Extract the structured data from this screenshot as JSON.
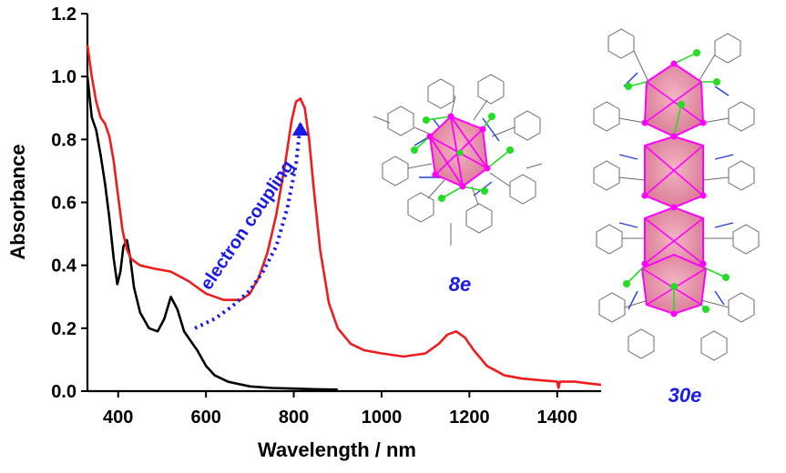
{
  "chart_data": {
    "type": "line",
    "xlabel": "Wavelength / nm",
    "ylabel": "Absorbance",
    "xlim": [
      330,
      1500
    ],
    "ylim": [
      0,
      1.2
    ],
    "x_ticks": [
      400,
      600,
      800,
      1000,
      1200,
      1400
    ],
    "y_ticks": [
      0.0,
      0.2,
      0.4,
      0.6,
      0.8,
      1.0,
      1.2
    ],
    "x_tick_labels": [
      "400",
      "600",
      "800",
      "1000",
      "1200",
      "1400"
    ],
    "y_tick_labels": [
      "0.0",
      "0.2",
      "0.4",
      "0.6",
      "0.8",
      "1.0",
      "1.2"
    ],
    "grid": false,
    "series": [
      {
        "color": "#000000",
        "x": [
          330,
          340,
          350,
          360,
          370,
          380,
          390,
          398,
          405,
          412,
          420,
          428,
          436,
          450,
          470,
          490,
          505,
          520,
          535,
          550,
          565,
          580,
          600,
          620,
          650,
          700,
          750,
          800,
          850,
          900
        ],
        "y": [
          1.0,
          0.87,
          0.83,
          0.75,
          0.66,
          0.55,
          0.42,
          0.34,
          0.38,
          0.46,
          0.48,
          0.42,
          0.33,
          0.25,
          0.2,
          0.19,
          0.23,
          0.3,
          0.26,
          0.19,
          0.16,
          0.13,
          0.08,
          0.05,
          0.03,
          0.015,
          0.01,
          0.008,
          0.006,
          0.005
        ]
      },
      {
        "color": "#ee1c1c",
        "x": [
          330,
          340,
          350,
          360,
          370,
          380,
          390,
          400,
          410,
          420,
          430,
          450,
          480,
          520,
          560,
          600,
          640,
          680,
          700,
          720,
          740,
          760,
          780,
          795,
          805,
          815,
          825,
          835,
          845,
          860,
          880,
          900,
          930,
          960,
          1000,
          1050,
          1100,
          1130,
          1150,
          1170,
          1190,
          1210,
          1240,
          1280,
          1320,
          1360,
          1400,
          1403,
          1406,
          1440,
          1470,
          1500
        ],
        "y": [
          1.1,
          1.0,
          0.92,
          0.87,
          0.85,
          0.81,
          0.73,
          0.62,
          0.51,
          0.45,
          0.42,
          0.4,
          0.39,
          0.38,
          0.35,
          0.31,
          0.29,
          0.29,
          0.31,
          0.36,
          0.44,
          0.56,
          0.72,
          0.86,
          0.92,
          0.93,
          0.9,
          0.8,
          0.65,
          0.45,
          0.28,
          0.2,
          0.15,
          0.13,
          0.12,
          0.11,
          0.12,
          0.15,
          0.18,
          0.19,
          0.17,
          0.13,
          0.08,
          0.05,
          0.04,
          0.035,
          0.03,
          0.01,
          0.03,
          0.03,
          0.025,
          0.02
        ]
      },
      {
        "color": "#1a1ae6",
        "style": "dotted-arrow",
        "x": [
          575,
          620,
          660,
          700,
          730,
          760,
          785,
          805,
          815
        ],
        "y": [
          0.2,
          0.23,
          0.27,
          0.32,
          0.38,
          0.46,
          0.58,
          0.72,
          0.85
        ]
      }
    ],
    "annotations": [
      {
        "text": "electron coupling",
        "color": "#1a1ae6"
      },
      {
        "text": "8e",
        "color": "#1a1ae6"
      },
      {
        "text": "30e",
        "color": "#1a1ae6"
      }
    ]
  }
}
